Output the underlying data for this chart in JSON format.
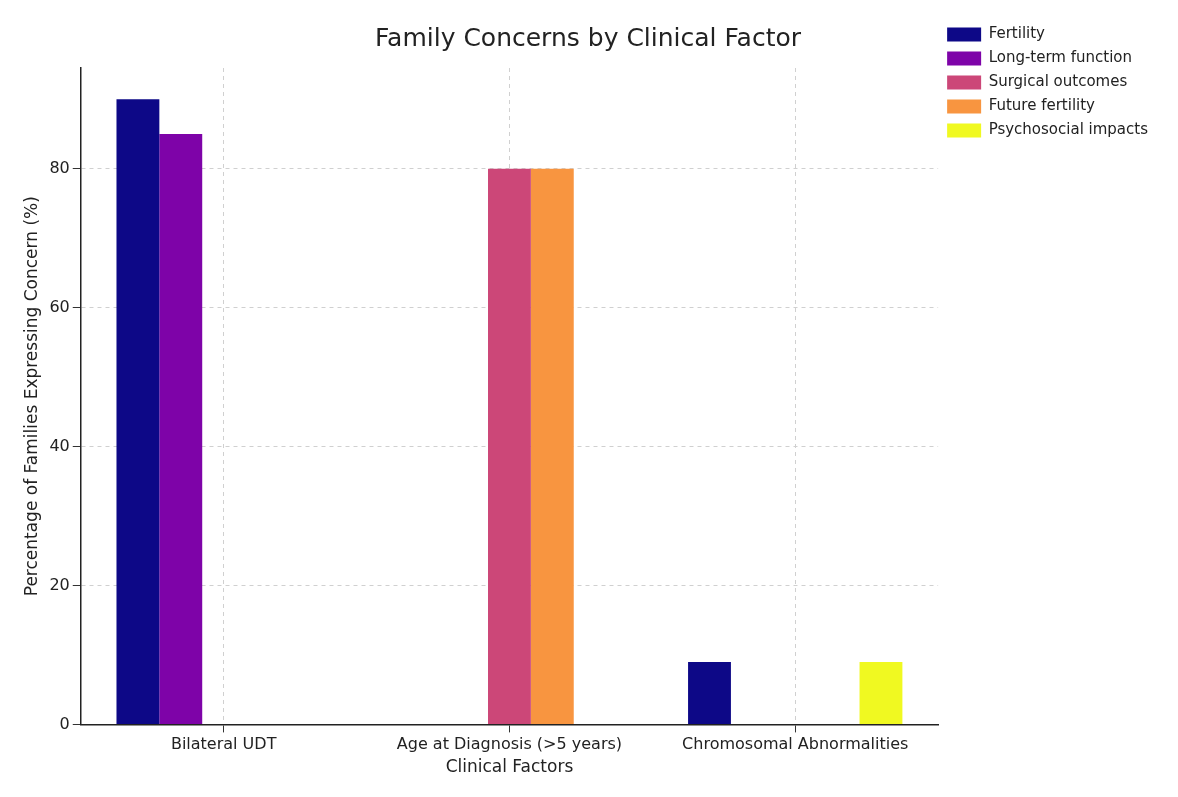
{
  "chart_data": {
    "type": "bar",
    "title": "Family Concerns by Clinical Factor",
    "xlabel": "Clinical Factors",
    "ylabel": "Percentage of Families Expressing Concern (%)",
    "categories": [
      "Bilateral UDT",
      "Age at Diagnosis (>5 years)",
      "Chromosomal Abnormalities"
    ],
    "series": [
      {
        "name": "Fertility",
        "color": "#0d0887",
        "values": [
          90,
          null,
          9
        ]
      },
      {
        "name": "Long-term function",
        "color": "#7e03a8",
        "values": [
          85,
          null,
          null
        ]
      },
      {
        "name": "Surgical outcomes",
        "color": "#cc4778",
        "values": [
          null,
          80,
          null
        ]
      },
      {
        "name": "Future fertility",
        "color": "#f89540",
        "values": [
          null,
          80,
          null
        ]
      },
      {
        "name": "Psychosocial impacts",
        "color": "#f0f921",
        "values": [
          null,
          null,
          9
        ]
      }
    ],
    "ylim": [
      0,
      94.5
    ],
    "yticks": [
      0,
      20,
      40,
      60,
      80
    ],
    "grid": true,
    "legend": "top right"
  }
}
